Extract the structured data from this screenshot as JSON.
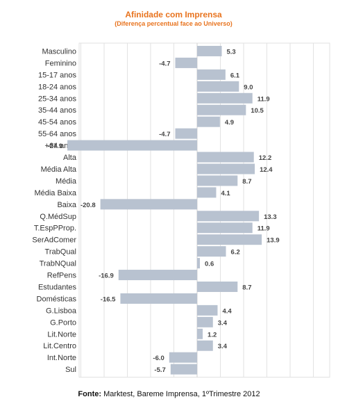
{
  "chart_data": {
    "type": "bar",
    "orientation": "horizontal",
    "title": "Afinidade com Imprensa",
    "subtitle": "(Diferença  percentual  face ao Universo)",
    "categories": [
      "Masculino",
      "Feminino",
      "15-17 anos",
      "18-24 anos",
      "25-34 anos",
      "35-44 anos",
      "45-54 anos",
      "55-64 anos",
      "+64 anos",
      "Alta",
      "Média Alta",
      "Média",
      "Média Baixa",
      "Baixa",
      "Q.MédSup",
      "T.EspPProp.",
      "SerAdComer",
      "TrabQual",
      "TrabNQual",
      "RefPens",
      "Estudantes",
      "Domésticas",
      "G.Lisboa",
      "G.Porto",
      "Lit.Norte",
      "Lit.Centro",
      "Int.Norte",
      "Sul"
    ],
    "values": [
      5.3,
      -4.7,
      6.1,
      9.0,
      11.9,
      10.5,
      4.9,
      -4.7,
      -27.9,
      12.2,
      12.4,
      8.7,
      4.1,
      -20.8,
      13.3,
      11.9,
      13.9,
      6.2,
      0.6,
      -16.9,
      8.7,
      -16.5,
      4.4,
      3.4,
      1.2,
      3.4,
      -6.0,
      -5.7
    ],
    "value_labels": [
      "5.3",
      "-4.7",
      "6.1",
      "9.0",
      "11.9",
      "10.5",
      "4.9",
      "-4.7",
      "-27.9",
      "12.2",
      "12.4",
      "8.7",
      "4.1",
      "-20.8",
      "13.3",
      "11.9",
      "13.9",
      "6.2",
      "0.6",
      "-16.9",
      "8.7",
      "-16.5",
      "4.4",
      "3.4",
      "1.2",
      "3.4",
      "-6.0",
      "-5.7"
    ],
    "xlim": [
      -32,
      32
    ],
    "grid": true,
    "colors": {
      "bar": "#B8C2D0",
      "title": "#E8731E",
      "label": "#444444",
      "grid": "#E2E2E2"
    }
  },
  "source": {
    "label": "Fonte:",
    "text": " Marktest, Bareme Imprensa, 1ºTrimestre 2012"
  }
}
